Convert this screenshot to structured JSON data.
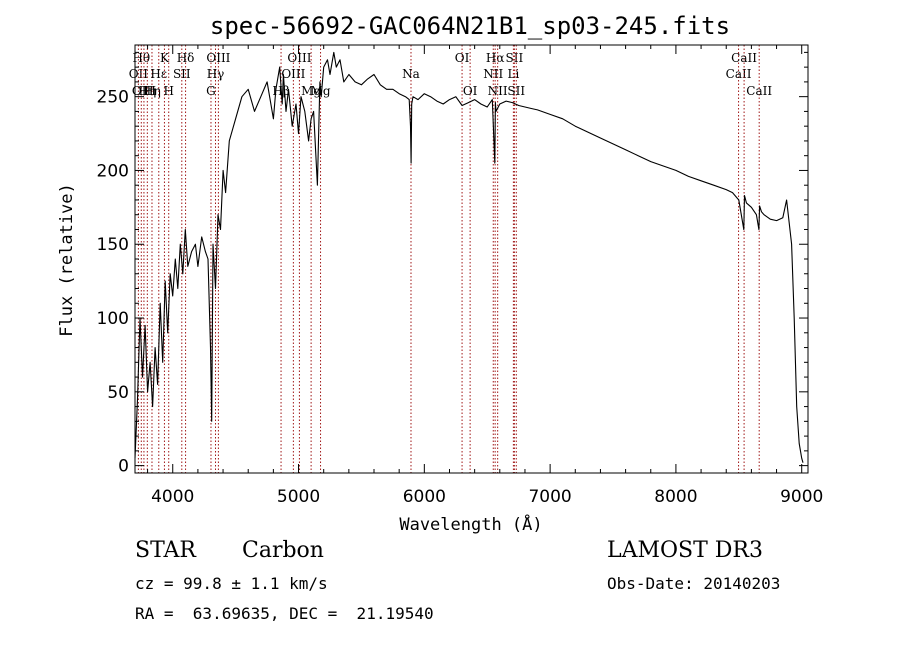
{
  "chart_data": {
    "type": "line",
    "title": "spec-56692-GAC064N21B1_sp03-245.fits",
    "xlabel": "Wavelength (Å)",
    "ylabel": "Flux (relative)",
    "xlim": [
      3700,
      9050
    ],
    "ylim": [
      -5,
      285
    ],
    "xticks": [
      4000,
      5000,
      6000,
      7000,
      8000,
      9000
    ],
    "yticks": [
      0,
      50,
      100,
      150,
      200,
      250
    ],
    "grid": false,
    "series": [
      {
        "x": [
          3700,
          3720,
          3740,
          3760,
          3780,
          3800,
          3820,
          3840,
          3860,
          3880,
          3900,
          3920,
          3940,
          3960,
          3980,
          4000,
          4020,
          4040,
          4060,
          4080,
          4100,
          4120,
          4150,
          4180,
          4200,
          4230,
          4260,
          4280,
          4300,
          4310,
          4320,
          4340,
          4360,
          4380,
          4400,
          4420,
          4450,
          4500,
          4550,
          4600,
          4650,
          4700,
          4750,
          4800,
          4820,
          4850,
          4870,
          4880,
          4900,
          4920,
          4950,
          4980,
          5000,
          5020,
          5050,
          5080,
          5100,
          5120,
          5150,
          5170,
          5180,
          5200,
          5230,
          5250,
          5280,
          5300,
          5330,
          5360,
          5400,
          5450,
          5500,
          5550,
          5600,
          5650,
          5700,
          5750,
          5800,
          5850,
          5880,
          5890,
          5895,
          5900,
          5910,
          5950,
          6000,
          6050,
          6100,
          6150,
          6200,
          6250,
          6300,
          6350,
          6400,
          6450,
          6500,
          6540,
          6560,
          6565,
          6570,
          6600,
          6650,
          6700,
          6750,
          6800,
          6850,
          6900,
          7000,
          7100,
          7200,
          7300,
          7400,
          7500,
          7600,
          7700,
          7800,
          7900,
          8000,
          8100,
          8200,
          8300,
          8400,
          8450,
          8500,
          8540,
          8545,
          8560,
          8600,
          8640,
          8660,
          8665,
          8680,
          8700,
          8750,
          8800,
          8850,
          8880,
          8900,
          8920,
          8940,
          8960,
          8980,
          9000,
          9010
        ],
        "y": [
          5,
          45,
          100,
          60,
          95,
          50,
          70,
          40,
          80,
          55,
          110,
          70,
          125,
          90,
          130,
          115,
          140,
          120,
          150,
          130,
          160,
          135,
          145,
          150,
          135,
          155,
          145,
          140,
          80,
          30,
          150,
          120,
          170,
          160,
          200,
          185,
          220,
          235,
          250,
          255,
          240,
          250,
          260,
          235,
          255,
          270,
          245,
          265,
          240,
          255,
          230,
          245,
          225,
          250,
          240,
          220,
          235,
          240,
          190,
          260,
          250,
          270,
          275,
          265,
          280,
          270,
          275,
          260,
          265,
          260,
          258,
          262,
          265,
          258,
          255,
          255,
          252,
          250,
          248,
          230,
          205,
          245,
          250,
          248,
          252,
          250,
          247,
          245,
          248,
          250,
          244,
          246,
          248,
          245,
          243,
          248,
          205,
          246,
          240,
          245,
          247,
          246,
          244,
          243,
          242,
          241,
          238,
          235,
          230,
          226,
          222,
          218,
          214,
          210,
          206,
          203,
          200,
          196,
          193,
          190,
          187,
          185,
          180,
          160,
          183,
          178,
          175,
          170,
          160,
          176,
          172,
          170,
          167,
          166,
          168,
          180,
          165,
          150,
          100,
          40,
          15,
          5,
          2
        ]
      }
    ],
    "line_markers": [
      {
        "x": 3727,
        "label": "OII",
        "row": 2
      },
      {
        "x": 3750,
        "label": "Hθ",
        "row": 1
      },
      {
        "x": 3771,
        "label": "OIII",
        "row": 3
      },
      {
        "x": 3798,
        "label": "Hη",
        "row": 3
      },
      {
        "x": 3835,
        "label": "Hη",
        "row": 3
      },
      {
        "x": 3889,
        "label": "Hε",
        "row": 2
      },
      {
        "x": 3934,
        "label": "K",
        "row": 1
      },
      {
        "x": 3968,
        "label": "H",
        "row": 3
      },
      {
        "x": 4072,
        "label": "SII",
        "row": 2
      },
      {
        "x": 4102,
        "label": "Hδ",
        "row": 1
      },
      {
        "x": 4304,
        "label": "G",
        "row": 3
      },
      {
        "x": 4340,
        "label": "Hγ",
        "row": 2
      },
      {
        "x": 4363,
        "label": "OIII",
        "row": 1
      },
      {
        "x": 4861,
        "label": "Hβ",
        "row": 3
      },
      {
        "x": 4959,
        "label": "OIII",
        "row": 2
      },
      {
        "x": 5007,
        "label": "OIII",
        "row": 1
      },
      {
        "x": 5100,
        "label": "Mg",
        "row": 3
      },
      {
        "x": 5175,
        "label": "Mg",
        "row": 3
      },
      {
        "x": 5894,
        "label": "Na",
        "row": 2
      },
      {
        "x": 6300,
        "label": "OI",
        "row": 1
      },
      {
        "x": 6364,
        "label": "OI",
        "row": 3
      },
      {
        "x": 6548,
        "label": "NII",
        "row": 2
      },
      {
        "x": 6563,
        "label": "Hα",
        "row": 1
      },
      {
        "x": 6583,
        "label": "NII",
        "row": 3
      },
      {
        "x": 6708,
        "label": "Li",
        "row": 2
      },
      {
        "x": 6716,
        "label": "SII",
        "row": 1
      },
      {
        "x": 6731,
        "label": "SII",
        "row": 3
      },
      {
        "x": 8498,
        "label": "CaII",
        "row": 2
      },
      {
        "x": 8542,
        "label": "CaII",
        "row": 1
      },
      {
        "x": 8662,
        "label": "CaII",
        "row": 3
      }
    ]
  },
  "info": {
    "class": "STAR",
    "subclass": "Carbon",
    "survey": "LAMOST DR3",
    "cz": "cz = 99.8 ± 1.1 km/s",
    "obs_date": "Obs-Date: 20140203",
    "coords": "RA =  63.69635, DEC =  21.19540"
  },
  "colors": {
    "line_marker": "#a01818",
    "spectrum": "#000000"
  }
}
